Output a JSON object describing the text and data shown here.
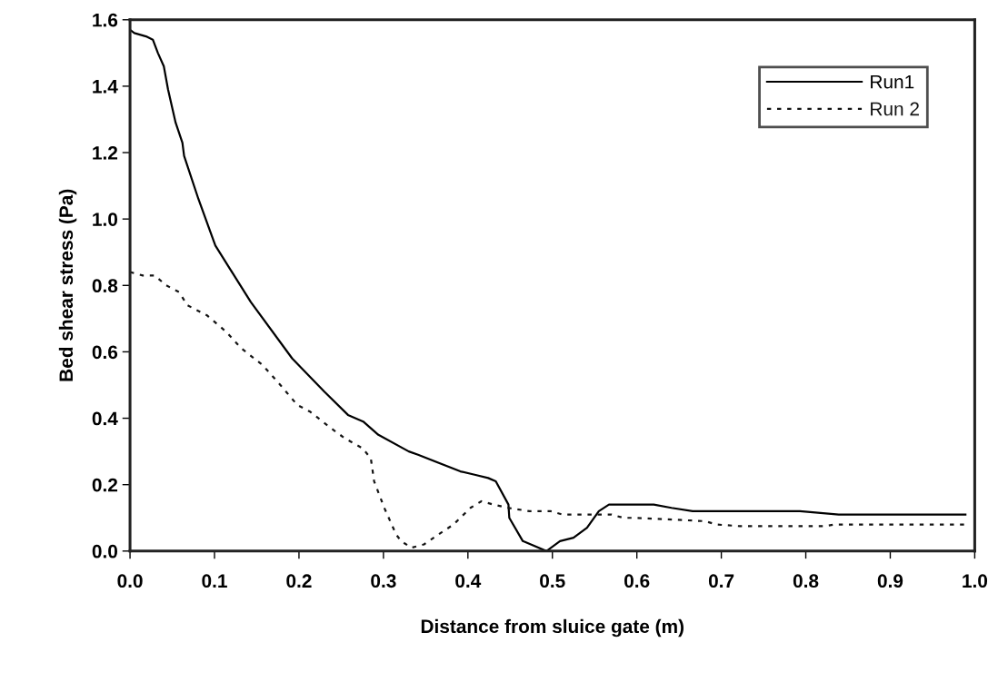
{
  "chart_data": {
    "type": "line",
    "xlabel": "Distance from sluice gate (m)",
    "ylabel": "Bed shear stress (Pa)",
    "xlim": [
      0,
      1.0
    ],
    "ylim": [
      0,
      1.6
    ],
    "xticks": [
      {
        "value": 0,
        "label": "0.0"
      },
      {
        "value": 0.1,
        "label": "0.1"
      },
      {
        "value": 0.2,
        "label": "0.2"
      },
      {
        "value": 0.3,
        "label": "0.3"
      },
      {
        "value": 0.4,
        "label": "0.4"
      },
      {
        "value": 0.5,
        "label": "0.5"
      },
      {
        "value": 0.6,
        "label": "0.6"
      },
      {
        "value": 0.7,
        "label": "0.7"
      },
      {
        "value": 0.8,
        "label": "0.8"
      },
      {
        "value": 0.9,
        "label": "0.9"
      },
      {
        "value": 1.0,
        "label": "1.0"
      }
    ],
    "yticks": [
      {
        "value": 0,
        "label": "0.0"
      },
      {
        "value": 0.2,
        "label": "0.2"
      },
      {
        "value": 0.4,
        "label": "0.4"
      },
      {
        "value": 0.6,
        "label": "0.6"
      },
      {
        "value": 0.8,
        "label": "0.8"
      },
      {
        "value": 1.0,
        "label": "1.0"
      },
      {
        "value": 1.2,
        "label": "1.2"
      },
      {
        "value": 1.4,
        "label": "1.4"
      },
      {
        "value": 1.6,
        "label": "1.6"
      }
    ],
    "grid": false,
    "legend": "top right",
    "marker": "none",
    "series": [
      {
        "name": "Run1",
        "color": "#000000",
        "line_style": "solid",
        "x": [
          0,
          0.005,
          0.019,
          0.027,
          0.033,
          0.04,
          0.045,
          0.054,
          0.062,
          0.064,
          0.081,
          0.101,
          0.143,
          0.192,
          0.23,
          0.258,
          0.276,
          0.294,
          0.33,
          0.341,
          0.391,
          0.408,
          0.424,
          0.433,
          0.448,
          0.449,
          0.465,
          0.493,
          0.509,
          0.525,
          0.541,
          0.555,
          0.567,
          0.598,
          0.62,
          0.641,
          0.666,
          0.706,
          0.793,
          0.839,
          0.989
        ],
        "values": [
          1.57,
          1.56,
          1.55,
          1.54,
          1.5,
          1.46,
          1.39,
          1.29,
          1.23,
          1.19,
          1.06,
          0.92,
          0.75,
          0.58,
          0.48,
          0.41,
          0.39,
          0.35,
          0.3,
          0.29,
          0.24,
          0.23,
          0.22,
          0.21,
          0.14,
          0.1,
          0.03,
          0.0,
          0.03,
          0.04,
          0.07,
          0.12,
          0.14,
          0.14,
          0.14,
          0.13,
          0.12,
          0.12,
          0.12,
          0.11,
          0.11
        ]
      },
      {
        "name": "Run 2",
        "color": "#141414",
        "line_style": "dotted",
        "x": [
          0,
          0.015,
          0.029,
          0.043,
          0.058,
          0.068,
          0.091,
          0.114,
          0.132,
          0.157,
          0.178,
          0.198,
          0.213,
          0.238,
          0.254,
          0.275,
          0.285,
          0.289,
          0.301,
          0.315,
          0.321,
          0.333,
          0.348,
          0.371,
          0.383,
          0.403,
          0.416,
          0.43,
          0.448,
          0.473,
          0.498,
          0.512,
          0.555,
          0.57,
          0.584,
          0.598,
          0.681,
          0.694,
          0.722,
          0.822,
          0.834,
          0.989
        ],
        "values": [
          0.84,
          0.83,
          0.83,
          0.8,
          0.78,
          0.74,
          0.71,
          0.66,
          0.61,
          0.56,
          0.5,
          0.44,
          0.42,
          0.37,
          0.34,
          0.31,
          0.28,
          0.21,
          0.13,
          0.05,
          0.03,
          0.01,
          0.02,
          0.06,
          0.08,
          0.13,
          0.15,
          0.14,
          0.13,
          0.12,
          0.12,
          0.11,
          0.11,
          0.11,
          0.1,
          0.1,
          0.09,
          0.08,
          0.075,
          0.075,
          0.08,
          0.08
        ]
      }
    ]
  }
}
